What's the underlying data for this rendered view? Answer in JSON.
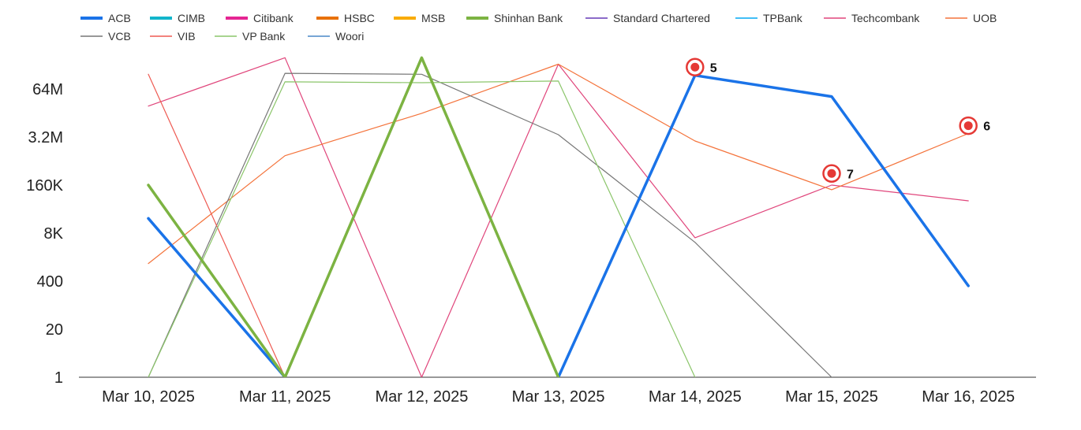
{
  "chart_data": {
    "type": "line",
    "y_scale": "log",
    "y_ticks": [
      "1",
      "20",
      "400",
      "8K",
      "160K",
      "3.2M",
      "64M"
    ],
    "y_tick_values": [
      1,
      20,
      400,
      8000,
      160000,
      3200000,
      64000000
    ],
    "categories": [
      "Mar 10, 2025",
      "Mar 11, 2025",
      "Mar 12, 2025",
      "Mar 13, 2025",
      "Mar 14, 2025",
      "Mar 15, 2025",
      "Mar 16, 2025"
    ],
    "legend_position": "top",
    "grid": false,
    "series": [
      {
        "name": "ACB",
        "color": "#1a73e8",
        "width": 3.5,
        "values": [
          20000,
          1,
          null,
          1,
          150000000,
          40000000,
          300
        ]
      },
      {
        "name": "CIMB",
        "color": "#12b5cb",
        "width": 3.5,
        "values": [
          null,
          null,
          null,
          null,
          null,
          null,
          null
        ]
      },
      {
        "name": "Citibank",
        "color": "#e52592",
        "width": 3.5,
        "values": [
          null,
          null,
          null,
          null,
          null,
          null,
          null
        ]
      },
      {
        "name": "HSBC",
        "color": "#e8710a",
        "width": 3.5,
        "values": [
          null,
          null,
          null,
          null,
          null,
          null,
          null
        ]
      },
      {
        "name": "MSB",
        "color": "#f9ab00",
        "width": 3.5,
        "values": [
          null,
          null,
          null,
          null,
          null,
          null,
          null
        ]
      },
      {
        "name": "Shinhan Bank",
        "color": "#7cb342",
        "width": 3.5,
        "values": [
          160000,
          1,
          450000000,
          1,
          null,
          null,
          null
        ]
      },
      {
        "name": "Standard Chartered",
        "color": "#673ab7",
        "width": 1.2,
        "values": [
          null,
          null,
          null,
          null,
          null,
          null,
          null
        ]
      },
      {
        "name": "TPBank",
        "color": "#03a9f4",
        "width": 1.2,
        "values": [
          null,
          null,
          null,
          null,
          null,
          null,
          null
        ]
      },
      {
        "name": "Techcombank",
        "color": "#e0457b",
        "width": 1.2,
        "values": [
          22000000,
          450000000,
          1,
          300000000,
          6000,
          160000,
          60000
        ]
      },
      {
        "name": "UOB",
        "color": "#f4733b",
        "width": 1.2,
        "values": [
          1200,
          1000000,
          14000000,
          300000000,
          2500000,
          120000,
          4000000
        ]
      },
      {
        "name": "VCB",
        "color": "#777777",
        "width": 1.2,
        "values": [
          1,
          170000000,
          160000000,
          3700000,
          4500,
          1,
          null
        ]
      },
      {
        "name": "VIB",
        "color": "#ee5a52",
        "width": 1.2,
        "values": [
          160000000,
          1,
          null,
          null,
          null,
          null,
          null
        ]
      },
      {
        "name": "VP Bank",
        "color": "#8bc56a",
        "width": 1.2,
        "values": [
          1,
          100000000,
          95000000,
          105000000,
          1,
          null,
          null
        ]
      },
      {
        "name": "Woori",
        "color": "#4a88c7",
        "width": 1.2,
        "values": [
          null,
          null,
          null,
          null,
          null,
          null,
          null
        ]
      }
    ],
    "annotations": [
      {
        "label": "5",
        "category": "Mar 14, 2025",
        "value": 250000000
      },
      {
        "label": "6",
        "category": "Mar 16, 2025",
        "value": 6500000
      },
      {
        "label": "7",
        "category": "Mar 15, 2025",
        "value": 330000
      }
    ]
  }
}
